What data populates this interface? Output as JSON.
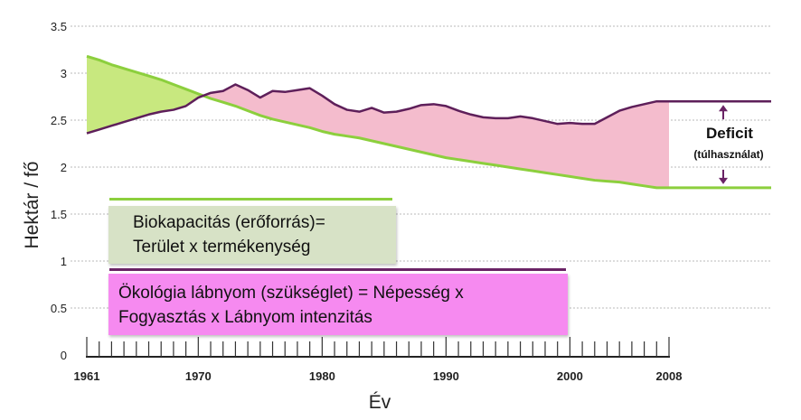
{
  "chart_data": {
    "type": "area",
    "title": "",
    "xlabel": "Év",
    "ylabel": "Hektár / fő",
    "xlim": [
      1961,
      2008
    ],
    "ylim": [
      0,
      3.5
    ],
    "x_tick_labels": [
      "1961",
      "1970",
      "1980",
      "1990",
      "2000",
      "2008"
    ],
    "y_tick_labels": [
      "0",
      "0.5",
      "1",
      "1.5",
      "2",
      "2.5",
      "3",
      "3.5"
    ],
    "grid": true,
    "series": [
      {
        "name": "Biokapacitás (erőforrás)",
        "color": "#8ccf3d",
        "x": [
          1961,
          1962,
          1963,
          1964,
          1965,
          1966,
          1967,
          1968,
          1969,
          1970,
          1971,
          1972,
          1973,
          1974,
          1975,
          1976,
          1977,
          1978,
          1979,
          1980,
          1981,
          1982,
          1983,
          1984,
          1985,
          1986,
          1987,
          1988,
          1989,
          1990,
          1991,
          1992,
          1993,
          1994,
          1995,
          1996,
          1997,
          1998,
          1999,
          2000,
          2001,
          2002,
          2003,
          2004,
          2005,
          2006,
          2007,
          2008
        ],
        "values": [
          3.18,
          3.14,
          3.09,
          3.05,
          3.01,
          2.97,
          2.93,
          2.88,
          2.83,
          2.78,
          2.73,
          2.69,
          2.65,
          2.6,
          2.55,
          2.51,
          2.48,
          2.45,
          2.42,
          2.38,
          2.35,
          2.33,
          2.31,
          2.28,
          2.25,
          2.22,
          2.19,
          2.16,
          2.13,
          2.1,
          2.08,
          2.06,
          2.04,
          2.02,
          2.0,
          1.98,
          1.96,
          1.94,
          1.92,
          1.9,
          1.88,
          1.86,
          1.85,
          1.84,
          1.82,
          1.8,
          1.78,
          1.78
        ]
      },
      {
        "name": "Ökológia lábnyom (szükséglet)",
        "color": "#5e1f5a",
        "x": [
          1961,
          1962,
          1963,
          1964,
          1965,
          1966,
          1967,
          1968,
          1969,
          1970,
          1971,
          1972,
          1973,
          1974,
          1975,
          1976,
          1977,
          1978,
          1979,
          1980,
          1981,
          1982,
          1983,
          1984,
          1985,
          1986,
          1987,
          1988,
          1989,
          1990,
          1991,
          1992,
          1993,
          1994,
          1995,
          1996,
          1997,
          1998,
          1999,
          2000,
          2001,
          2002,
          2003,
          2004,
          2005,
          2006,
          2007,
          2008
        ],
        "values": [
          2.36,
          2.4,
          2.44,
          2.48,
          2.52,
          2.56,
          2.59,
          2.61,
          2.65,
          2.74,
          2.79,
          2.81,
          2.88,
          2.82,
          2.74,
          2.81,
          2.8,
          2.82,
          2.84,
          2.76,
          2.67,
          2.61,
          2.59,
          2.63,
          2.58,
          2.59,
          2.62,
          2.66,
          2.67,
          2.65,
          2.6,
          2.56,
          2.53,
          2.52,
          2.52,
          2.54,
          2.52,
          2.49,
          2.46,
          2.47,
          2.46,
          2.46,
          2.53,
          2.6,
          2.64,
          2.67,
          2.7,
          2.7
        ]
      }
    ],
    "projection": {
      "biocapacity": 1.78,
      "footprint": 2.7
    },
    "fills": {
      "biocapacity_over_footprint": "#c8e87f",
      "deficit": "#f4bccd"
    },
    "annotations": {
      "deficit_title": "Deficit",
      "deficit_subtitle": "(túlhasználat)"
    }
  },
  "legend": {
    "biocapacity": {
      "line1": "Biokapacitás (erőforrás)=",
      "line2": "Terület x termékenység",
      "background": "#d7e2c6",
      "line_color": "#8ccf3d"
    },
    "footprint": {
      "line1": "Ökológia lábnyom (szükséglet) = Népesség x",
      "line2": "Fogyasztás x Lábnyom intenzitás",
      "background": "#f68af0",
      "line_color": "#6a2365"
    }
  }
}
